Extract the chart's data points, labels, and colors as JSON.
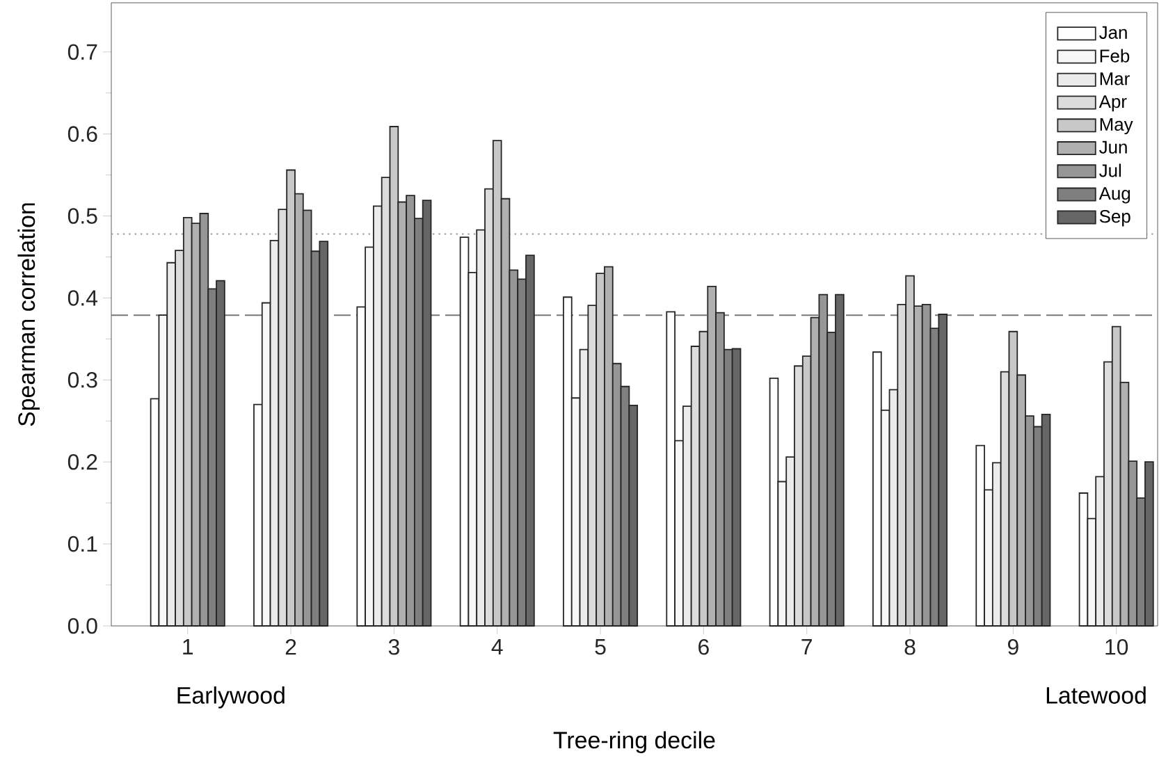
{
  "chart_data": {
    "type": "bar",
    "xlabel": "Tree-ring decile",
    "ylabel": "Spearman correlation",
    "categories": [
      "1",
      "2",
      "3",
      "4",
      "5",
      "6",
      "7",
      "8",
      "9",
      "10"
    ],
    "series": [
      {
        "name": "Jan",
        "color": "#ffffff",
        "values": [
          0.277,
          0.27,
          0.389,
          0.474,
          0.401,
          0.383,
          0.302,
          0.334,
          0.22,
          0.162
        ]
      },
      {
        "name": "Feb",
        "color": "#f7f7f7",
        "values": [
          0.379,
          0.394,
          0.462,
          0.431,
          0.278,
          0.226,
          0.176,
          0.263,
          0.166,
          0.131
        ]
      },
      {
        "name": "Mar",
        "color": "#ebebeb",
        "values": [
          0.443,
          0.47,
          0.512,
          0.483,
          0.337,
          0.268,
          0.206,
          0.288,
          0.199,
          0.182
        ]
      },
      {
        "name": "Apr",
        "color": "#dcdcdc",
        "values": [
          0.458,
          0.508,
          0.547,
          0.533,
          0.391,
          0.341,
          0.317,
          0.392,
          0.31,
          0.322
        ]
      },
      {
        "name": "May",
        "color": "#c8c8c8",
        "values": [
          0.498,
          0.556,
          0.609,
          0.592,
          0.43,
          0.359,
          0.329,
          0.427,
          0.359,
          0.365
        ]
      },
      {
        "name": "Jun",
        "color": "#b0b0b0",
        "values": [
          0.491,
          0.527,
          0.517,
          0.521,
          0.438,
          0.414,
          0.376,
          0.39,
          0.306,
          0.297
        ]
      },
      {
        "name": "Jul",
        "color": "#969696",
        "values": [
          0.503,
          0.507,
          0.525,
          0.434,
          0.32,
          0.382,
          0.404,
          0.392,
          0.256,
          0.201
        ]
      },
      {
        "name": "Aug",
        "color": "#7f7f7f",
        "values": [
          0.411,
          0.457,
          0.497,
          0.423,
          0.292,
          0.337,
          0.358,
          0.363,
          0.243,
          0.156
        ]
      },
      {
        "name": "Sep",
        "color": "#666666",
        "values": [
          0.421,
          0.469,
          0.519,
          0.452,
          0.269,
          0.338,
          0.404,
          0.38,
          0.258,
          0.2
        ]
      }
    ],
    "ylim": [
      0,
      0.76
    ],
    "yticks": [
      {
        "value": 0,
        "label": "0.0"
      },
      0.1,
      0.2,
      0.3,
      0.4,
      0.5,
      0.6,
      0.7
    ],
    "ref_lines": [
      {
        "axis": "y",
        "value": 0.478,
        "line_style": "dotted",
        "color": "#999999"
      },
      {
        "axis": "y",
        "value": 0.379,
        "line_style": "dashed",
        "color": "#777777"
      }
    ],
    "annotations": [
      "Earlywood",
      "Latewood"
    ],
    "legend": "top right",
    "grid": false
  }
}
